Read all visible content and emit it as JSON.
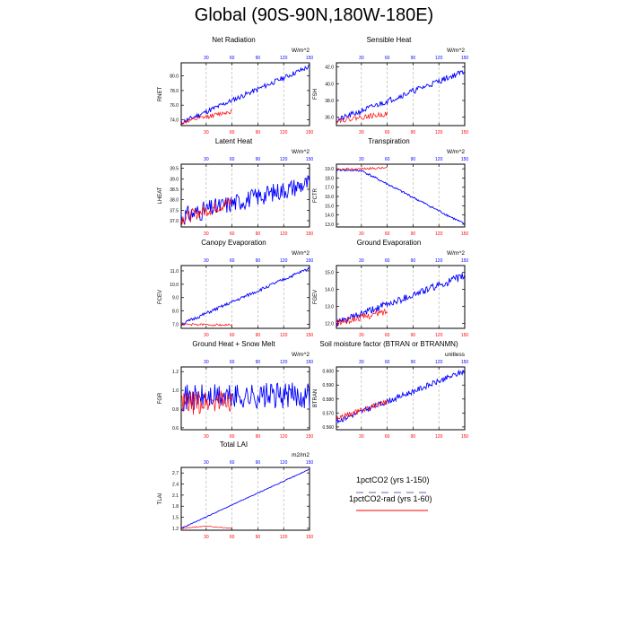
{
  "main_title": "Global (90S-90N,180W-180E)",
  "legend": {
    "items": [
      {
        "label": "1pctCO2 (yrs 1-150)",
        "color": "#9999cc",
        "style": "dashed"
      },
      {
        "label": "1pctCO2-rad (yrs 1-60)",
        "color": "#ff0000",
        "style": "solid"
      }
    ]
  },
  "colors": {
    "series_1pctCO2": "#0000ff",
    "series_1pctCO2_rad": "#ff0000",
    "gridline": "#aaaaaa"
  },
  "chart_data": [
    {
      "id": "rnet",
      "type": "line",
      "title": "Net Radiation",
      "ylabel": "RNET",
      "units": "W/m^2",
      "xlim": [
        1,
        150
      ],
      "ylim": [
        73.2,
        81.8
      ],
      "yticks": [
        74.0,
        76.0,
        78.0,
        80.0
      ],
      "ytick_labels": [
        "74.0",
        "76.0",
        "78.0",
        "80.0"
      ],
      "xticks": [
        30,
        60,
        90,
        120,
        150
      ],
      "grid_x": true,
      "series": [
        {
          "color": "blue",
          "x": [
            1,
            150
          ],
          "y": [
            73.6,
            81.3
          ],
          "noise": 0.35,
          "seed": 11
        },
        {
          "color": "red",
          "x": [
            1,
            60
          ],
          "y": [
            73.6,
            75.2
          ],
          "noise": 0.3,
          "seed": 12
        }
      ]
    },
    {
      "id": "fsh",
      "type": "line",
      "title": "Sensible Heat",
      "ylabel": "FSH",
      "units": "W/m^2",
      "xlim": [
        1,
        150
      ],
      "ylim": [
        35.0,
        42.5
      ],
      "yticks": [
        36.0,
        38.0,
        40.0,
        42.0
      ],
      "ytick_labels": [
        "36.0",
        "38.0",
        "40.0",
        "42.0"
      ],
      "xticks": [
        30,
        60,
        90,
        120,
        150
      ],
      "grid_x": true,
      "series": [
        {
          "color": "blue",
          "x": [
            1,
            150
          ],
          "y": [
            35.6,
            41.5
          ],
          "noise": 0.35,
          "seed": 21
        },
        {
          "color": "red",
          "x": [
            1,
            60
          ],
          "y": [
            35.6,
            36.4
          ],
          "noise": 0.3,
          "seed": 22
        }
      ]
    },
    {
      "id": "lheat",
      "type": "line",
      "title": "Latent Heat",
      "ylabel": "LHEAT",
      "units": "W/m^2",
      "xlim": [
        1,
        150
      ],
      "ylim": [
        36.7,
        39.7
      ],
      "yticks": [
        37.0,
        37.5,
        38.0,
        38.5,
        39.0,
        39.5
      ],
      "ytick_labels": [
        "37.0",
        "37.5",
        "38.0",
        "38.5",
        "39.0",
        "39.5"
      ],
      "xticks": [
        30,
        60,
        90,
        120,
        150
      ],
      "grid_x": true,
      "series": [
        {
          "color": "blue",
          "x": [
            1,
            150
          ],
          "y": [
            37.2,
            38.8
          ],
          "noise": 0.45,
          "seed": 31
        },
        {
          "color": "red",
          "x": [
            1,
            60
          ],
          "y": [
            37.1,
            37.9
          ],
          "noise": 0.3,
          "seed": 32
        }
      ]
    },
    {
      "id": "fctr",
      "type": "line",
      "title": "Transpiration",
      "ylabel": "FCTR",
      "units": "W/m^2",
      "xlim": [
        1,
        150
      ],
      "ylim": [
        12.7,
        19.5
      ],
      "yticks": [
        13.0,
        14.0,
        15.0,
        16.0,
        17.0,
        18.0,
        19.0
      ],
      "ytick_labels": [
        "13.0",
        "14.0",
        "15.0",
        "16.0",
        "17.0",
        "18.0",
        "19.0"
      ],
      "xticks": [
        30,
        60,
        90,
        120,
        150
      ],
      "grid_x": true,
      "series": [
        {
          "color": "blue",
          "x": [
            1,
            30,
            150
          ],
          "y": [
            18.9,
            18.8,
            13.0
          ],
          "noise": 0.12,
          "seed": 41
        },
        {
          "color": "red",
          "x": [
            1,
            60
          ],
          "y": [
            18.9,
            19.1
          ],
          "noise": 0.12,
          "seed": 42
        }
      ]
    },
    {
      "id": "fcev",
      "type": "line",
      "title": "Canopy Evaporation",
      "ylabel": "FCEV",
      "units": "W/m^2",
      "xlim": [
        1,
        150
      ],
      "ylim": [
        6.7,
        11.4
      ],
      "yticks": [
        7.0,
        8.0,
        9.0,
        10.0,
        11.0
      ],
      "ytick_labels": [
        "7.0",
        "8.0",
        "9.0",
        "10.0",
        "11.0"
      ],
      "xticks": [
        30,
        60,
        90,
        120,
        150
      ],
      "grid_x": true,
      "series": [
        {
          "color": "blue",
          "x": [
            1,
            150
          ],
          "y": [
            7.0,
            11.2
          ],
          "noise": 0.12,
          "seed": 51
        },
        {
          "color": "red",
          "x": [
            1,
            60
          ],
          "y": [
            7.0,
            6.95
          ],
          "noise": 0.08,
          "seed": 52
        }
      ]
    },
    {
      "id": "fgev",
      "type": "line",
      "title": "Ground Evaporation",
      "ylabel": "FGEV",
      "units": "W/m^2",
      "xlim": [
        1,
        150
      ],
      "ylim": [
        11.7,
        15.4
      ],
      "yticks": [
        12.0,
        13.0,
        14.0,
        15.0
      ],
      "ytick_labels": [
        "12.0",
        "13.0",
        "14.0",
        "15.0"
      ],
      "xticks": [
        30,
        60,
        90,
        120,
        150
      ],
      "grid_x": true,
      "series": [
        {
          "color": "blue",
          "x": [
            1,
            150
          ],
          "y": [
            12.0,
            14.8
          ],
          "noise": 0.22,
          "seed": 61
        },
        {
          "color": "red",
          "x": [
            1,
            60
          ],
          "y": [
            12.0,
            12.7
          ],
          "noise": 0.2,
          "seed": 62
        }
      ]
    },
    {
      "id": "fgr",
      "type": "line",
      "title": "Ground Heat + Snow Melt",
      "ylabel": "FGR",
      "units": "W/m^2",
      "xlim": [
        1,
        150
      ],
      "ylim": [
        0.58,
        1.25
      ],
      "yticks": [
        0.6,
        0.8,
        1.0,
        1.2
      ],
      "ytick_labels": [
        "0.6",
        "0.8",
        "1.0",
        "1.2"
      ],
      "xticks": [
        30,
        60,
        90,
        120,
        150
      ],
      "grid_x": true,
      "series": [
        {
          "color": "blue",
          "x": [
            1,
            150
          ],
          "y": [
            0.92,
            0.95
          ],
          "noise": 0.14,
          "seed": 71
        },
        {
          "color": "red",
          "x": [
            1,
            60
          ],
          "y": [
            0.85,
            0.9
          ],
          "noise": 0.13,
          "seed": 72
        }
      ]
    },
    {
      "id": "btran",
      "type": "line",
      "title": "Soil moisture factor (BTRAN or BTRANMN)",
      "ylabel": "BTRAN",
      "units": "unitless",
      "xlim": [
        1,
        150
      ],
      "ylim": [
        0.558,
        0.603
      ],
      "yticks": [
        0.56,
        0.57,
        0.58,
        0.59,
        0.6
      ],
      "ytick_labels": [
        "0.560",
        "0.570",
        "0.580",
        "0.590",
        "0.600"
      ],
      "xticks": [
        30,
        60,
        90,
        120,
        150
      ],
      "grid_x": true,
      "series": [
        {
          "color": "blue",
          "x": [
            1,
            150
          ],
          "y": [
            0.564,
            0.6
          ],
          "noise": 0.002,
          "seed": 81
        },
        {
          "color": "red",
          "x": [
            1,
            60
          ],
          "y": [
            0.566,
            0.578
          ],
          "noise": 0.002,
          "seed": 82
        }
      ]
    },
    {
      "id": "tlai",
      "type": "line",
      "title": "Total LAI",
      "ylabel": "TLAI",
      "units": "m2/m2",
      "xlim": [
        1,
        150
      ],
      "ylim": [
        1.15,
        2.85
      ],
      "yticks": [
        1.2,
        1.5,
        1.8,
        2.1,
        2.4,
        2.7
      ],
      "ytick_labels": [
        "1.2",
        "1.5",
        "1.8",
        "2.1",
        "2.4",
        "2.7"
      ],
      "xticks": [
        30,
        60,
        90,
        120,
        150
      ],
      "grid_x": true,
      "series": [
        {
          "color": "blue",
          "x": [
            1,
            150
          ],
          "y": [
            1.2,
            2.8
          ],
          "noise": 0.01,
          "seed": 91
        },
        {
          "color": "red",
          "x": [
            1,
            30,
            60
          ],
          "y": [
            1.2,
            1.26,
            1.2
          ],
          "noise": 0.008,
          "seed": 92
        }
      ]
    }
  ]
}
